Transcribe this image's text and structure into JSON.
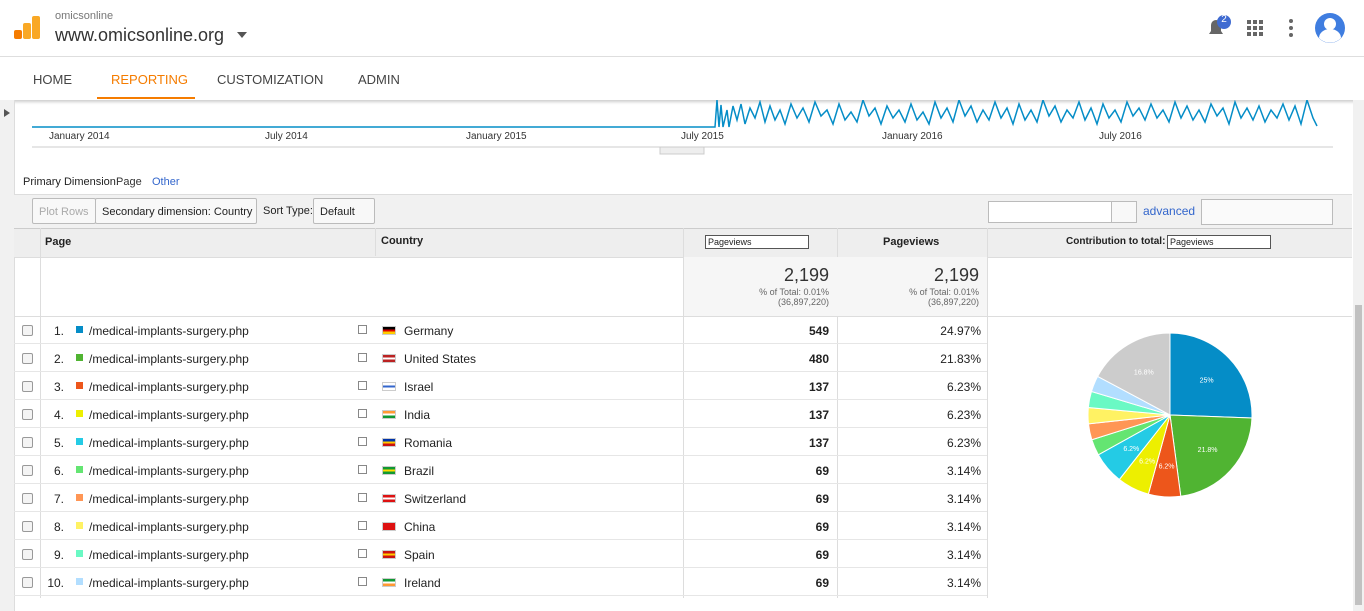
{
  "header": {
    "account": "omicsonline",
    "property": "www.omicsonline.org",
    "notifications": "2"
  },
  "nav": [
    "HOME",
    "REPORTING",
    "CUSTOMIZATION",
    "ADMIN"
  ],
  "timeline": {
    "x_labels": [
      "January 2014",
      "July 2014",
      "January 2015",
      "July 2015",
      "January 2016",
      "July 2016"
    ]
  },
  "controls": {
    "primary_dimension_label": "Primary Dimension:",
    "primary_dimension": "Page",
    "other": "Other",
    "plot_rows": "Plot Rows",
    "secondary_dimension": "Secondary dimension: Country",
    "sort_type_label": "Sort Type:",
    "sort_type": "Default",
    "advanced": "advanced"
  },
  "table": {
    "columns": {
      "page": "Page",
      "country": "Country",
      "metric_select": "Pageviews",
      "pageviews": "Pageviews",
      "contribution": "Contribution to total:",
      "contribution_select": "Pageviews"
    },
    "totals": [
      {
        "value": "2,199",
        "percent": "% of Total: 0.01%",
        "total": "(36,897,220)"
      },
      {
        "value": "2,199",
        "percent": "% of Total: 0.01%",
        "total": "(36,897,220)"
      }
    ],
    "rows": [
      {
        "index": "1.",
        "color": "#058dc7",
        "page": "/medical-implants-surgery.php",
        "country": "Germany",
        "pageviews": 549,
        "percent": "24.97%"
      },
      {
        "index": "2.",
        "color": "#50b432",
        "page": "/medical-implants-surgery.php",
        "country": "United States",
        "pageviews": 480,
        "percent": "21.83%"
      },
      {
        "index": "3.",
        "color": "#ed561b",
        "page": "/medical-implants-surgery.php",
        "country": "Israel",
        "pageviews": 137,
        "percent": "6.23%"
      },
      {
        "index": "4.",
        "color": "#edef00",
        "page": "/medical-implants-surgery.php",
        "country": "India",
        "pageviews": 137,
        "percent": "6.23%"
      },
      {
        "index": "5.",
        "color": "#24cbe5",
        "page": "/medical-implants-surgery.php",
        "country": "Romania",
        "pageviews": 137,
        "percent": "6.23%"
      },
      {
        "index": "6.",
        "color": "#64e572",
        "page": "/medical-implants-surgery.php",
        "country": "Brazil",
        "pageviews": 69,
        "percent": "3.14%"
      },
      {
        "index": "7.",
        "color": "#ff9655",
        "page": "/medical-implants-surgery.php",
        "country": "Switzerland",
        "pageviews": 69,
        "percent": "3.14%"
      },
      {
        "index": "8.",
        "color": "#fff263",
        "page": "/medical-implants-surgery.php",
        "country": "China",
        "pageviews": 69,
        "percent": "3.14%"
      },
      {
        "index": "9.",
        "color": "#6af9c4",
        "page": "/medical-implants-surgery.php",
        "country": "Spain",
        "pageviews": 69,
        "percent": "3.14%"
      },
      {
        "index": "10.",
        "color": "#b2deff",
        "page": "/medical-implants-surgery.php",
        "country": "Ireland",
        "pageviews": 69,
        "percent": "3.14%"
      }
    ]
  },
  "pie": {
    "values": [
      25,
      21.8,
      6.2,
      6.2,
      6.2,
      3.1,
      3.1,
      3.1,
      3.1,
      3.1,
      16.8
    ],
    "value_labels": [
      "25%",
      "21.8%",
      "6.2%",
      "6.2%",
      "6.2%",
      null,
      null,
      null,
      null,
      null,
      "16.8%"
    ],
    "colors": [
      "#058dc7",
      "#50b432",
      "#ed561b",
      "#edef00",
      "#24cbe5",
      "#64e572",
      "#ff9655",
      "#fff263",
      "#6af9c4",
      "#b2deff",
      "#cccccc"
    ]
  }
}
